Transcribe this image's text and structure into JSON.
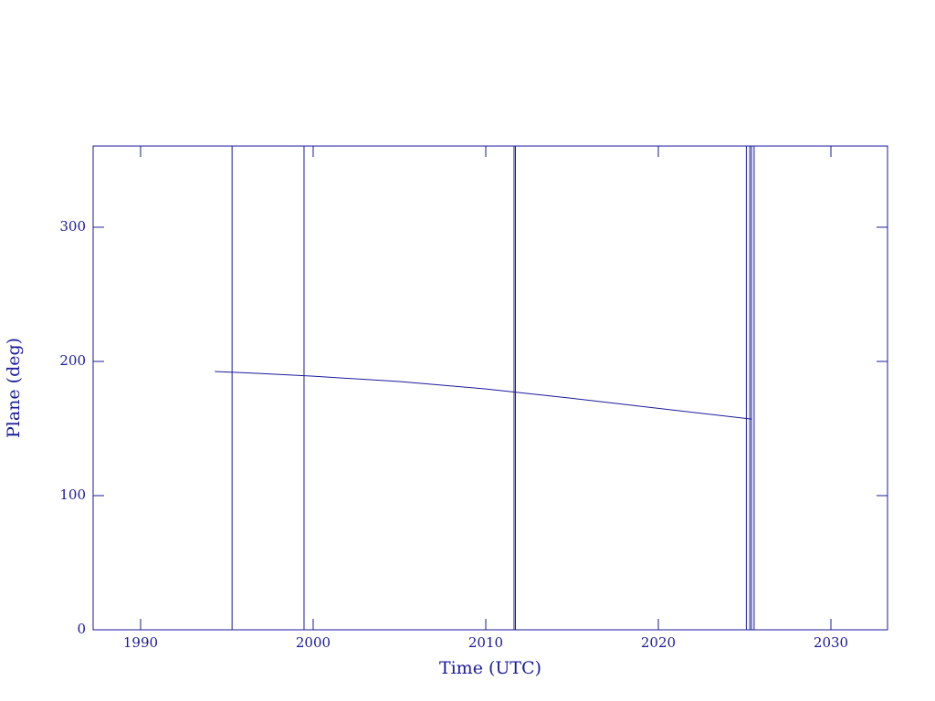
{
  "chart_data": {
    "type": "line",
    "xlabel": "Time (UTC)",
    "ylabel": "Plane (deg)",
    "x": [
      1994.3,
      1997,
      2000,
      2005,
      2010,
      2015,
      2020,
      2025.4
    ],
    "series": [
      {
        "color": "#1a1a9c",
        "values": [
          192.5,
          191,
          189,
          185,
          179.5,
          172.5,
          165,
          157
        ]
      }
    ],
    "vlines": [
      1995.3,
      1999.47,
      2011.64,
      2011.72,
      2025.1,
      2025.3,
      2025.4,
      2025.55
    ],
    "xlim": [
      1987.25,
      2033.28
    ],
    "ylim": [
      0,
      360.5
    ],
    "xticks": [
      1990,
      2000,
      2010,
      2020,
      2030
    ],
    "yticks": [
      0,
      100,
      200,
      300
    ]
  }
}
